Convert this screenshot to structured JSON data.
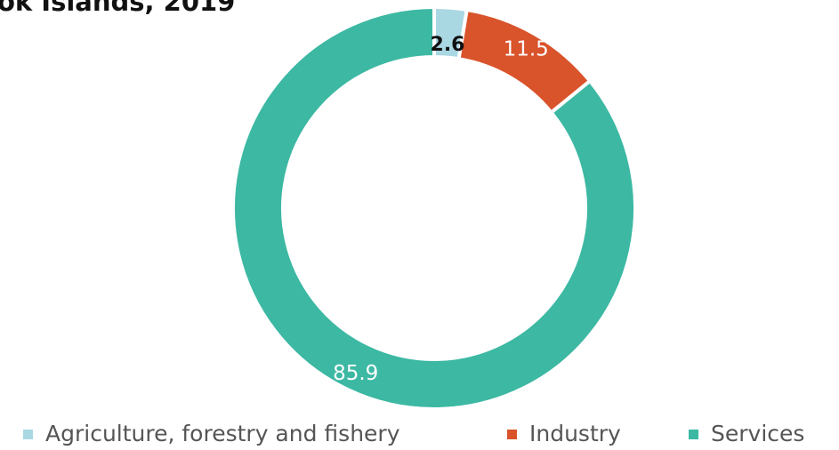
{
  "chart_data": {
    "type": "pie",
    "variant": "donut",
    "title": "ok Islands, 2019",
    "categories": [
      "Agriculture, forestry and fishery",
      "Industry",
      "Services"
    ],
    "values": [
      2.6,
      11.5,
      85.9
    ],
    "data_labels": [
      "2.6",
      "11.5",
      "85.9"
    ],
    "colors": [
      "#a9d8e3",
      "#d9532b",
      "#3cb8a3"
    ],
    "legend": {
      "position": "bottom",
      "entries": [
        "Agriculture, forestry and fishery",
        "Industry",
        "Services"
      ]
    }
  }
}
